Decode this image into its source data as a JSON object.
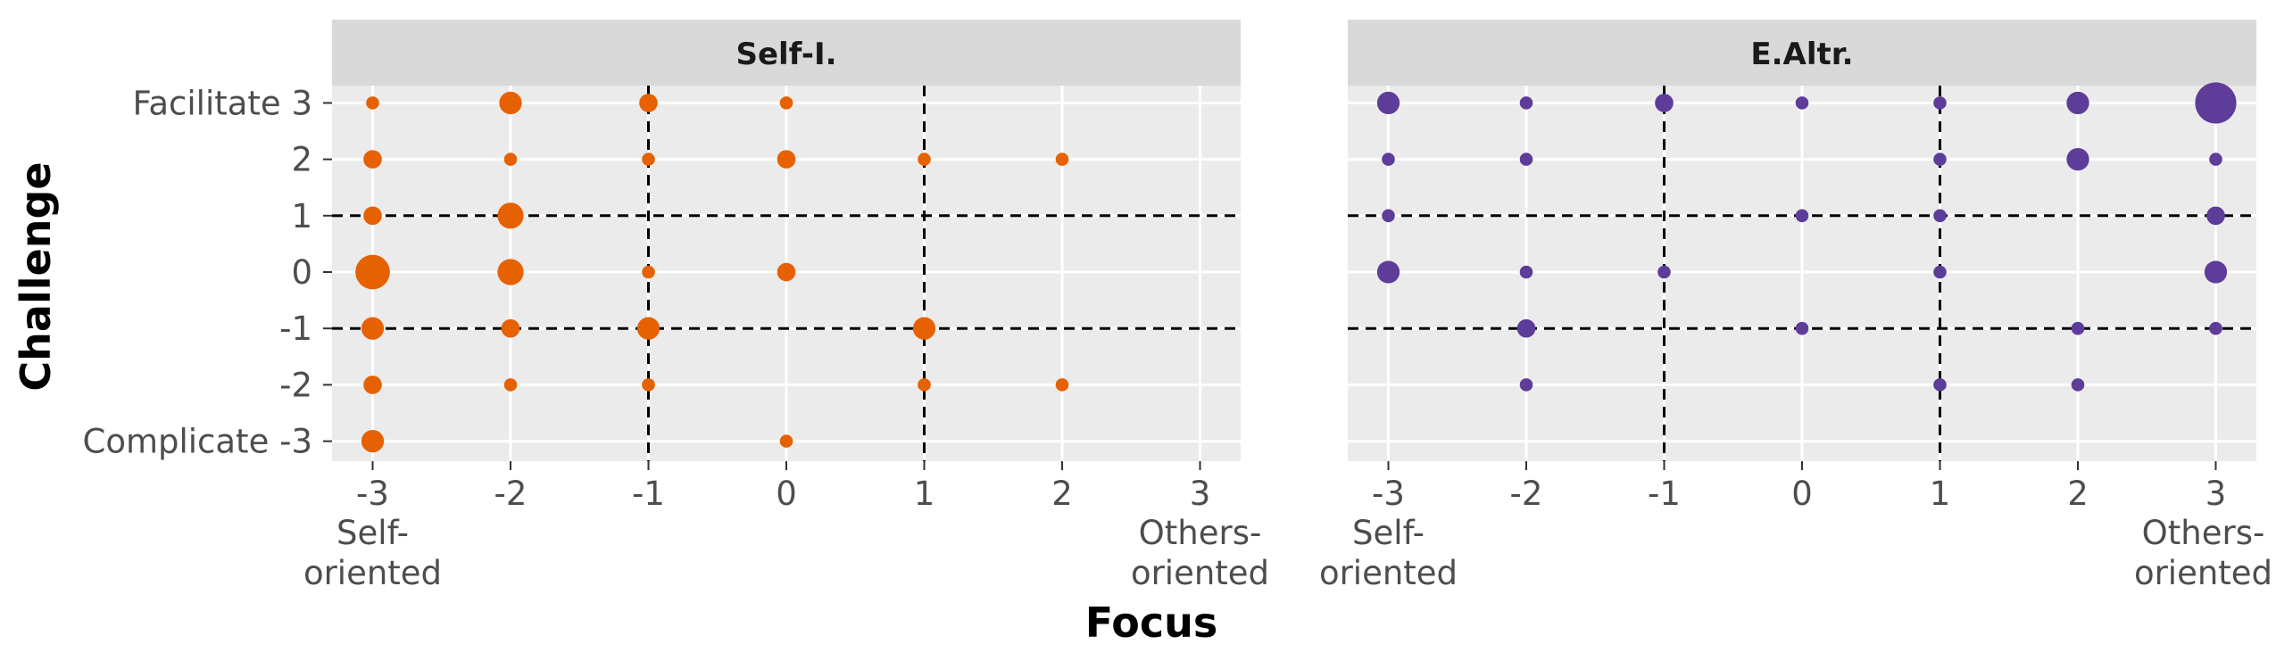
{
  "chart_data": {
    "type": "scatter",
    "xlabel": "Focus",
    "ylabel": "Challenge",
    "xlim": [
      -3,
      3
    ],
    "ylim": [
      -3,
      3
    ],
    "x_ticks": [
      "-3",
      "-2",
      "-1",
      "0",
      "1",
      "2",
      "3"
    ],
    "y_ticks": [
      "Complicate -3",
      "-2",
      "-1",
      "0",
      "1",
      "2",
      "Facilitate 3"
    ],
    "x_end_labels": {
      "left": [
        "Self-",
        "oriented"
      ],
      "right": [
        "Others-",
        "oriented"
      ]
    },
    "reference_lines": {
      "x": [
        -1,
        1
      ],
      "y": [
        -1,
        1
      ],
      "style": "dashed"
    },
    "grid": true,
    "facets": [
      {
        "title": "Self-I.",
        "color": "#E66101",
        "points": [
          {
            "x": -3,
            "y": 3,
            "size": 1
          },
          {
            "x": -2,
            "y": 3,
            "size": 3
          },
          {
            "x": -1,
            "y": 3,
            "size": 2
          },
          {
            "x": 0,
            "y": 3,
            "size": 1
          },
          {
            "x": -3,
            "y": 2,
            "size": 2
          },
          {
            "x": -2,
            "y": 2,
            "size": 1
          },
          {
            "x": -1,
            "y": 2,
            "size": 1
          },
          {
            "x": 0,
            "y": 2,
            "size": 2
          },
          {
            "x": 1,
            "y": 2,
            "size": 1
          },
          {
            "x": 2,
            "y": 2,
            "size": 1
          },
          {
            "x": -3,
            "y": 1,
            "size": 2
          },
          {
            "x": -2,
            "y": 1,
            "size": 4
          },
          {
            "x": -3,
            "y": 0,
            "size": 7
          },
          {
            "x": -2,
            "y": 0,
            "size": 4
          },
          {
            "x": -1,
            "y": 0,
            "size": 1
          },
          {
            "x": 0,
            "y": 0,
            "size": 2
          },
          {
            "x": -3,
            "y": -1,
            "size": 3
          },
          {
            "x": -2,
            "y": -1,
            "size": 2
          },
          {
            "x": -1,
            "y": -1,
            "size": 3
          },
          {
            "x": 1,
            "y": -1,
            "size": 3
          },
          {
            "x": -3,
            "y": -2,
            "size": 2
          },
          {
            "x": -2,
            "y": -2,
            "size": 1
          },
          {
            "x": -1,
            "y": -2,
            "size": 1
          },
          {
            "x": 1,
            "y": -2,
            "size": 1
          },
          {
            "x": 2,
            "y": -2,
            "size": 1
          },
          {
            "x": -3,
            "y": -3,
            "size": 3
          },
          {
            "x": 0,
            "y": -3,
            "size": 1
          }
        ]
      },
      {
        "title": "E.Altr.",
        "color": "#5E3C99",
        "points": [
          {
            "x": -3,
            "y": 3,
            "size": 3
          },
          {
            "x": -2,
            "y": 3,
            "size": 1
          },
          {
            "x": -1,
            "y": 3,
            "size": 2
          },
          {
            "x": 0,
            "y": 3,
            "size": 1
          },
          {
            "x": 1,
            "y": 3,
            "size": 1
          },
          {
            "x": 2,
            "y": 3,
            "size": 3
          },
          {
            "x": 3,
            "y": 3,
            "size": 10
          },
          {
            "x": -3,
            "y": 2,
            "size": 1
          },
          {
            "x": -2,
            "y": 2,
            "size": 1
          },
          {
            "x": 1,
            "y": 2,
            "size": 1
          },
          {
            "x": 2,
            "y": 2,
            "size": 3
          },
          {
            "x": 3,
            "y": 2,
            "size": 1
          },
          {
            "x": -3,
            "y": 1,
            "size": 1
          },
          {
            "x": 0,
            "y": 1,
            "size": 1
          },
          {
            "x": 1,
            "y": 1,
            "size": 1
          },
          {
            "x": 3,
            "y": 1,
            "size": 2
          },
          {
            "x": -3,
            "y": 0,
            "size": 3
          },
          {
            "x": -2,
            "y": 0,
            "size": 1
          },
          {
            "x": -1,
            "y": 0,
            "size": 1
          },
          {
            "x": 1,
            "y": 0,
            "size": 1
          },
          {
            "x": 3,
            "y": 0,
            "size": 3
          },
          {
            "x": -2,
            "y": -1,
            "size": 2
          },
          {
            "x": 0,
            "y": -1,
            "size": 1
          },
          {
            "x": 2,
            "y": -1,
            "size": 1
          },
          {
            "x": 3,
            "y": -1,
            "size": 1
          },
          {
            "x": -2,
            "y": -2,
            "size": 1
          },
          {
            "x": 1,
            "y": -2,
            "size": 1
          },
          {
            "x": 2,
            "y": -2,
            "size": 1
          }
        ]
      }
    ]
  }
}
